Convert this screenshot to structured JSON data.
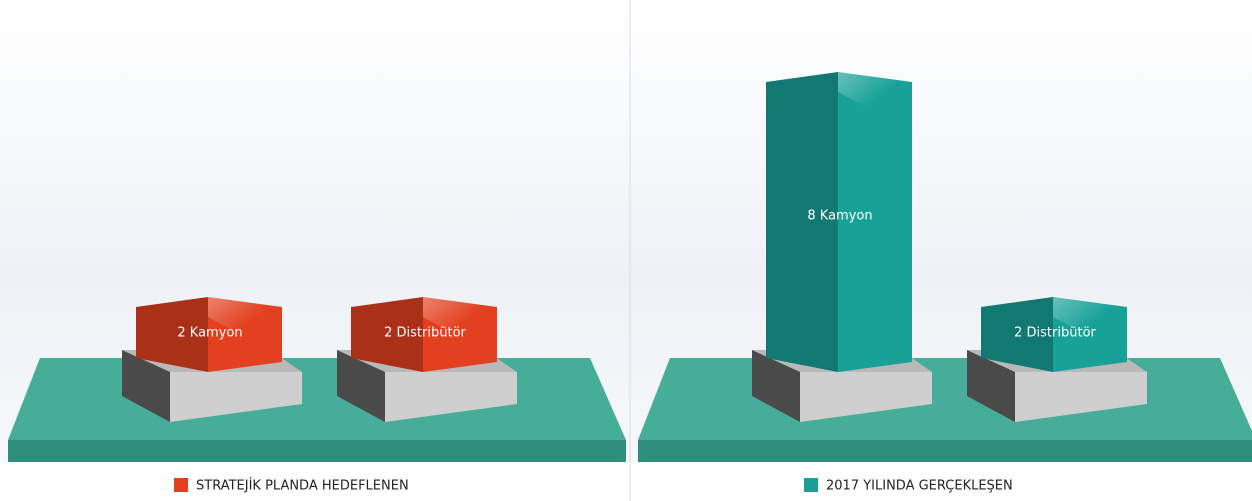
{
  "chart_data": [
    {
      "type": "bar",
      "series": [
        {
          "name": "STRATEJİK PLANDA HEDEFLENEN",
          "color": "#e2401f",
          "values": [
            2,
            2
          ],
          "value_labels": [
            "2 Kamyon",
            "2 Distribütör"
          ]
        }
      ]
    },
    {
      "type": "bar",
      "series": [
        {
          "name": "2017 YILINDA GERÇEKLEŞEN",
          "color": "#17a197",
          "values": [
            8,
            2
          ],
          "value_labels": [
            "8 Kamyon",
            "2 Distribütör"
          ]
        }
      ]
    }
  ]
}
